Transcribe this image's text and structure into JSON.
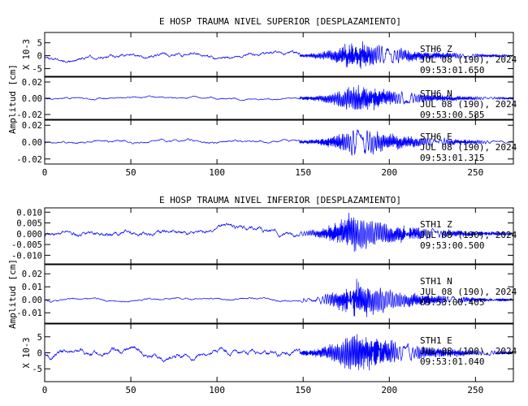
{
  "chart_data": [
    {
      "type": "line",
      "title": "E HOSP TRAUMA NIVEL SUPERIOR [DESPLAZAMIENTO]",
      "ylabel": "Amplitud [cm]",
      "xlim": [
        0,
        272
      ],
      "xticks": [
        0,
        50,
        100,
        150,
        200,
        250
      ],
      "xtick_labels": [
        "0",
        "50",
        "100",
        "150",
        "200",
        "250"
      ],
      "series": [
        {
          "name": "STH6 Z",
          "station": "STH6",
          "component": "Z",
          "date": "JUL 08 (190), 2024",
          "time": "09:53:01.650",
          "scale_label": "X 10-3",
          "ylim": [
            -8,
            9
          ],
          "yticks": [
            -5,
            0,
            5
          ],
          "ytick_labels": [
            "-5",
            "0",
            "5"
          ],
          "onset_s": 148,
          "peak_s": 180,
          "pre_amp": 0.8,
          "max_amp": 6.5,
          "seed": 11
        },
        {
          "name": "STH6 N",
          "station": "STH6",
          "component": "N",
          "date": "JUL 08 (190), 2024",
          "time": "09:53:00.585",
          "scale_label": "",
          "ylim": [
            -0.026,
            0.026
          ],
          "yticks": [
            -0.02,
            0,
            0.02
          ],
          "ytick_labels": [
            "-0.02",
            "0.00",
            "0.02"
          ],
          "onset_s": 148,
          "peak_s": 180,
          "pre_amp": 0.0012,
          "max_amp": 0.02,
          "seed": 23
        },
        {
          "name": "STH6 E",
          "station": "STH6",
          "component": "E",
          "date": "JUL 08 (190), 2024",
          "time": "09:53:01.315",
          "scale_label": "",
          "ylim": [
            -0.026,
            0.026
          ],
          "yticks": [
            -0.02,
            0,
            0.02
          ],
          "ytick_labels": [
            "-0.02",
            "0.00",
            "0.02"
          ],
          "onset_s": 148,
          "peak_s": 181,
          "pre_amp": 0.0015,
          "max_amp": 0.02,
          "seed": 37
        }
      ]
    },
    {
      "type": "line",
      "title": "E HOSP TRAUMA NIVEL INFERIOR [DESPLAZAMIENTO]",
      "ylabel": "Amplitud [cm]",
      "xlim": [
        0,
        272
      ],
      "xticks": [
        0,
        50,
        100,
        150,
        200,
        250
      ],
      "xtick_labels": [
        "0",
        "50",
        "100",
        "150",
        "200",
        "250"
      ],
      "series": [
        {
          "name": "STH1 Z",
          "station": "STH1",
          "component": "Z",
          "date": "JUL 08 (190), 2024",
          "time": "09:53:00.500",
          "scale_label": "",
          "ylim": [
            -0.014,
            0.012
          ],
          "yticks": [
            -0.01,
            -0.005,
            0,
            0.005,
            0.01
          ],
          "ytick_labels": [
            "-0.010",
            "-0.005",
            "0.000",
            "0.005",
            "0.010"
          ],
          "onset_s": 148,
          "peak_s": 178,
          "pre_amp": 0.0012,
          "max_amp": 0.0105,
          "seed": 41
        },
        {
          "name": "STH1 N",
          "station": "STH1",
          "component": "N",
          "date": "JUL 08 (190), 2024",
          "time": "09:53:00.405",
          "scale_label": "",
          "ylim": [
            -0.018,
            0.027
          ],
          "yticks": [
            -0.01,
            0,
            0.01,
            0.02
          ],
          "ytick_labels": [
            "-0.01",
            "0.00",
            "0.01",
            "0.02"
          ],
          "onset_s": 150,
          "peak_s": 180,
          "pre_amp": 0.0008,
          "max_amp": 0.016,
          "seed": 53
        },
        {
          "name": "STH1 E",
          "station": "STH1",
          "component": "E",
          "date": "JUL 08 (190), 2024",
          "time": "09:53:01.040",
          "scale_label": "X 10-3",
          "ylim": [
            -9,
            9
          ],
          "yticks": [
            -5,
            0,
            5
          ],
          "ytick_labels": [
            "-5",
            "0",
            "5"
          ],
          "onset_s": 148,
          "peak_s": 180,
          "pre_amp": 0.9,
          "max_amp": 7.5,
          "seed": 67
        }
      ]
    }
  ],
  "colors": {
    "trace": "#0000ff",
    "axes": "#000000",
    "background": "#ffffff"
  }
}
